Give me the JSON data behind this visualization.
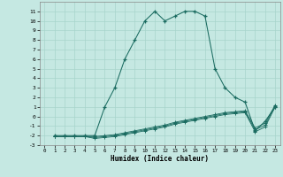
{
  "xlabel": "Humidex (Indice chaleur)",
  "xlim": [
    -0.5,
    23.5
  ],
  "ylim": [
    -3,
    12
  ],
  "yticks": [
    -3,
    -2,
    -1,
    0,
    1,
    2,
    3,
    4,
    5,
    6,
    7,
    8,
    9,
    10,
    11
  ],
  "xticks": [
    0,
    1,
    2,
    3,
    4,
    5,
    6,
    7,
    8,
    9,
    10,
    11,
    12,
    13,
    14,
    15,
    16,
    17,
    18,
    19,
    20,
    21,
    22,
    23
  ],
  "bg_color": "#c5e8e2",
  "line_color": "#1a6b60",
  "grid_color": "#a8d4cc",
  "curve1_x": [
    1,
    2,
    3,
    4,
    5,
    6,
    7,
    8,
    9,
    10,
    11,
    12,
    13,
    14,
    15,
    16,
    17,
    18,
    19,
    20,
    21,
    22,
    23
  ],
  "curve1_y": [
    -2,
    -2,
    -2,
    -2,
    -2,
    1,
    3,
    6,
    8,
    10,
    11,
    10,
    10.5,
    11,
    11,
    10.5,
    5,
    3,
    2,
    1.5,
    -1.5,
    -0.5,
    1
  ],
  "curve2_x": [
    1,
    2,
    3,
    4,
    5,
    6,
    7,
    8,
    9,
    10,
    11,
    12,
    13,
    14,
    15,
    16,
    17,
    18,
    19,
    20,
    21,
    22,
    23
  ],
  "curve2_y": [
    -2.1,
    -2.1,
    -2.1,
    -2.1,
    -2.1,
    -2.0,
    -1.9,
    -1.7,
    -1.5,
    -1.3,
    -1.1,
    -0.9,
    -0.6,
    -0.4,
    -0.2,
    0.0,
    0.2,
    0.4,
    0.5,
    0.6,
    -1.2,
    -0.7,
    1.2
  ],
  "curve3_x": [
    1,
    2,
    3,
    4,
    5,
    6,
    7,
    8,
    9,
    10,
    11,
    12,
    13,
    14,
    15,
    16,
    17,
    18,
    19,
    20,
    21,
    22,
    23
  ],
  "curve3_y": [
    -2.1,
    -2.1,
    -2.1,
    -2.1,
    -2.2,
    -2.1,
    -2.0,
    -1.8,
    -1.6,
    -1.4,
    -1.2,
    -1.0,
    -0.7,
    -0.5,
    -0.3,
    -0.1,
    0.1,
    0.3,
    0.4,
    0.5,
    -1.4,
    -0.9,
    1.1
  ],
  "curve4_x": [
    1,
    2,
    3,
    4,
    5,
    6,
    7,
    8,
    9,
    10,
    11,
    12,
    13,
    14,
    15,
    16,
    17,
    18,
    19,
    20,
    21,
    22,
    23
  ],
  "curve4_y": [
    -2.1,
    -2.1,
    -2.1,
    -2.1,
    -2.3,
    -2.2,
    -2.1,
    -1.9,
    -1.7,
    -1.5,
    -1.3,
    -1.1,
    -0.8,
    -0.6,
    -0.4,
    -0.2,
    0.0,
    0.2,
    0.3,
    0.4,
    -1.6,
    -1.1,
    1.0
  ]
}
